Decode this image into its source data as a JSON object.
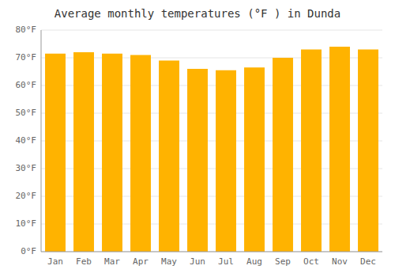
{
  "chart_data": {
    "type": "bar",
    "title": "Average monthly temperatures (°F ) in Dunda",
    "categories": [
      "Jan",
      "Feb",
      "Mar",
      "Apr",
      "May",
      "Jun",
      "Jul",
      "Aug",
      "Sep",
      "Oct",
      "Nov",
      "Dec"
    ],
    "values": [
      71.5,
      72.0,
      71.5,
      71.0,
      69.0,
      66.0,
      65.5,
      66.5,
      70.0,
      73.0,
      74.0,
      73.0
    ],
    "color": "#FFB300",
    "ylim": [
      0,
      80
    ],
    "yticks": [
      {
        "value": 0,
        "label": "0°F"
      },
      {
        "value": 10,
        "label": "10°F"
      },
      {
        "value": 20,
        "label": "20°F"
      },
      {
        "value": 30,
        "label": "30°F"
      },
      {
        "value": 40,
        "label": "40°F"
      },
      {
        "value": 50,
        "label": "50°F"
      },
      {
        "value": 60,
        "label": "60°F"
      },
      {
        "value": 70,
        "label": "70°F"
      },
      {
        "value": 80,
        "label": "80°F"
      }
    ],
    "grid": true
  }
}
